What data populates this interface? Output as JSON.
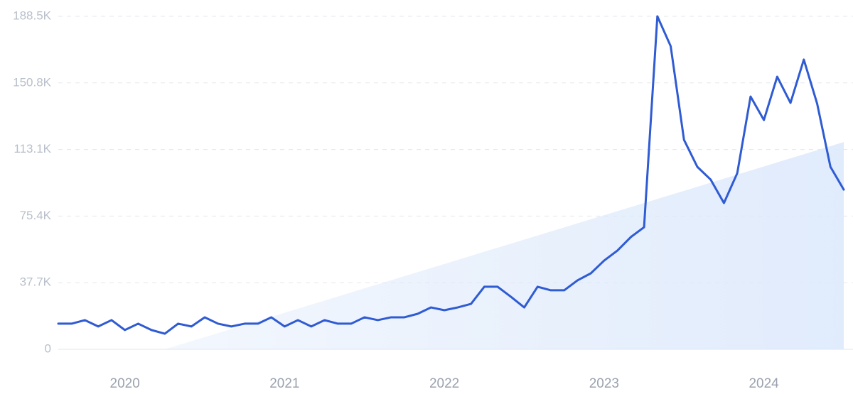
{
  "chart_data": {
    "type": "line",
    "categories": [
      null,
      null,
      null,
      null,
      null,
      "2020",
      null,
      null,
      null,
      null,
      null,
      null,
      null,
      null,
      null,
      null,
      null,
      "2021",
      null,
      null,
      null,
      null,
      null,
      null,
      null,
      null,
      null,
      null,
      null,
      "2022",
      null,
      null,
      null,
      null,
      null,
      null,
      null,
      null,
      null,
      null,
      null,
      "2023",
      null,
      null,
      null,
      null,
      null,
      null,
      null,
      null,
      null,
      null,
      null,
      "2024",
      null,
      null,
      null,
      null,
      null,
      null
    ],
    "series": [
      {
        "color": "#2f5bd3",
        "values": [
          14500,
          14500,
          16500,
          12900,
          16500,
          10900,
          14500,
          10900,
          8800,
          14500,
          12900,
          18100,
          14500,
          12900,
          14500,
          14500,
          18100,
          12900,
          16500,
          12900,
          16500,
          14500,
          14500,
          18100,
          16500,
          18100,
          18100,
          20100,
          23700,
          22100,
          23700,
          25700,
          35400,
          35400,
          29700,
          23700,
          35400,
          33400,
          33400,
          39000,
          43000,
          50200,
          55900,
          63500,
          69100,
          188500,
          171600,
          118600,
          103300,
          96100,
          82800,
          99700,
          143100,
          129800,
          154300,
          139500,
          164000,
          139100,
          103300,
          90400
        ]
      },
      {
        "color": "#dde9fb",
        "values": [
          null,
          null,
          null,
          null,
          null,
          null,
          null,
          null,
          0,
          2300,
          4600,
          6900,
          9200,
          11500,
          13800,
          16100,
          18400,
          20700,
          23000,
          25300,
          27600,
          29900,
          32200,
          34500,
          36800,
          39100,
          41400,
          43700,
          46000,
          48300,
          50600,
          52900,
          55200,
          57500,
          59800,
          62100,
          64400,
          66700,
          69000,
          71300,
          73600,
          75900,
          78200,
          80500,
          82800,
          85100,
          87400,
          89700,
          92000,
          94300,
          96600,
          98900,
          101200,
          103500,
          105800,
          108100,
          110400,
          112700,
          115000,
          117300
        ]
      }
    ],
    "ylim": [
      0,
      188500
    ],
    "yticks": [
      0,
      {
        "value": 37700,
        "label": "37.7K"
      },
      {
        "value": 75400,
        "label": "75.4K"
      },
      {
        "value": 113100,
        "label": "113.1K"
      },
      {
        "value": 150800,
        "label": "150.8K"
      },
      {
        "value": 188500,
        "label": "188.5K"
      }
    ],
    "grid": true
  }
}
